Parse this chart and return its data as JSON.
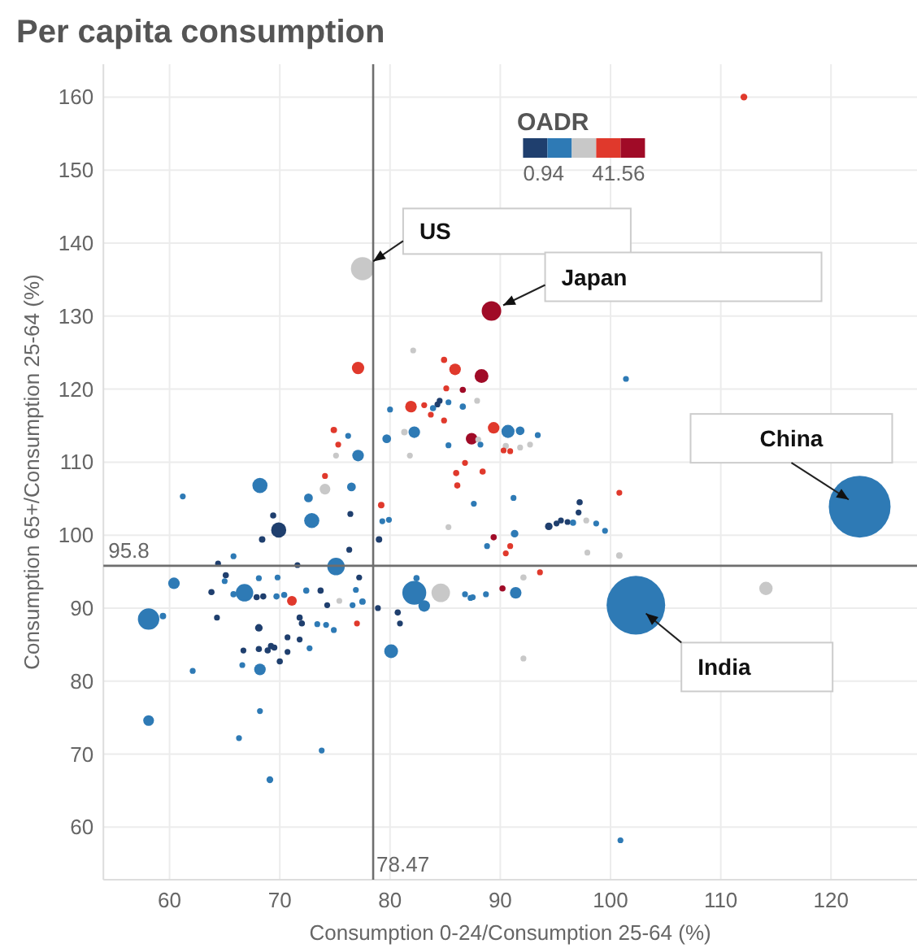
{
  "chart_data": {
    "type": "bubble",
    "title": "Per capita consumption",
    "xlabel": "Consumption 0-24/Consumption 25-64 (%)",
    "ylabel": "Consumption 65+/Consumption 25-64 (%)",
    "legend_title": "OADR",
    "xlim": [
      54,
      127.8
    ],
    "ylim": [
      52.8,
      164.5
    ],
    "xticks": [
      60,
      70,
      80,
      90,
      100,
      110,
      120
    ],
    "yticks": [
      60,
      70,
      80,
      90,
      100,
      110,
      120,
      130,
      140,
      150,
      160
    ],
    "grid": true,
    "ref_lines": [
      {
        "axis": "x",
        "value": 78.47,
        "label": "78.47",
        "color": "#6e6e6e"
      },
      {
        "axis": "y",
        "value": 95.8,
        "label": "95.8",
        "color": "#6e6e6e"
      }
    ],
    "annotations": [
      {
        "text": "US",
        "x": 77.5,
        "y": 136.5
      },
      {
        "text": "Japan",
        "x": 89.2,
        "y": 130.7
      },
      {
        "text": "China",
        "x": 122.6,
        "y": 103.9
      },
      {
        "text": "India",
        "x": 102.3,
        "y": 90.4
      },
      "0.94",
      "41.56"
    ],
    "x": [
      122.6,
      102.3,
      77.5,
      89.2,
      112.1,
      114.1,
      100.8,
      100.8,
      101.4,
      100.9,
      77.1,
      74.9,
      75.3,
      76.2,
      79.7,
      81.3,
      77.1,
      75.1,
      68.2,
      74.1,
      76.5,
      74.1,
      72.6,
      79.2,
      72.9,
      69.9,
      69.4,
      76.4,
      68.4,
      79.0,
      79.3,
      79.9,
      61.2,
      76.3,
      75.1,
      65.8,
      64.4,
      71.6,
      60.4,
      65.1,
      65.0,
      63.8,
      66.8,
      65.8,
      68.1,
      69.8,
      68.5,
      67.9,
      69.7,
      70.4,
      71.1,
      72.4,
      73.7,
      77.5,
      76.6,
      74.3,
      75.4,
      77.2,
      76.9,
      58.1,
      59.4,
      64.3,
      68.1,
      71.8,
      72.0,
      73.4,
      74.2,
      74.9,
      77.0,
      78.9,
      80.7,
      80.9,
      80.1,
      70.7,
      71.8,
      69.2,
      69.5,
      68.9,
      68.1,
      66.7,
      70.0,
      70.7,
      72.7,
      68.2,
      66.6,
      62.1,
      58.1,
      68.2,
      66.3,
      73.8,
      69.1,
      92.1,
      82.1,
      84.9,
      85.9,
      88.3,
      86.6,
      85.1,
      84.5,
      84.3,
      85.3,
      87.9,
      81.9,
      83.1,
      83.9,
      86.6,
      80.0,
      83.7,
      84.9,
      82.2,
      89.4,
      90.7,
      91.8,
      93.4,
      87.4,
      88.0,
      88.2,
      85.3,
      90.5,
      90.3,
      90.9,
      91.8,
      92.7,
      81.8,
      86.0,
      88.4,
      86.8,
      86.1,
      87.6,
      91.2,
      97.2,
      97.1,
      94.4,
      95.1,
      95.5,
      96.1,
      96.6,
      97.8,
      98.7,
      99.5,
      97.9,
      85.3,
      91.3,
      89.4,
      88.8,
      90.9,
      90.5,
      82.2,
      82.4,
      84.6,
      83.1,
      86.8,
      87.3,
      87.5,
      88.7,
      90.2,
      91.4,
      92.1,
      93.6
    ],
    "values": [
      103.9,
      90.4,
      136.5,
      130.7,
      160,
      92.7,
      97.2,
      105.8,
      121.4,
      58.2,
      122.9,
      114.4,
      112.4,
      113.6,
      113.2,
      114.1,
      110.9,
      110.9,
      106.8,
      106.3,
      106.6,
      108.1,
      105.1,
      104.1,
      102.0,
      100.7,
      102.7,
      102.9,
      99.4,
      99.4,
      101.9,
      102.1,
      105.3,
      98.0,
      95.7,
      97.1,
      96.1,
      95.9,
      93.4,
      94.5,
      93.7,
      92.2,
      92.1,
      91.9,
      94.1,
      94.2,
      91.6,
      91.5,
      91.6,
      91.8,
      91.0,
      92.4,
      92.4,
      90.9,
      90.4,
      90.4,
      91.0,
      94.2,
      92.5,
      88.5,
      88.9,
      88.7,
      87.3,
      88.7,
      87.9,
      87.8,
      87.7,
      87.0,
      87.9,
      90.0,
      89.4,
      87.9,
      84.1,
      86.0,
      85.7,
      84.8,
      84.6,
      84.2,
      84.4,
      84.2,
      82.7,
      84.0,
      84.5,
      81.6,
      82.2,
      81.4,
      74.6,
      75.9,
      72.2,
      70.5,
      66.5,
      83.1,
      125.3,
      124.0,
      122.7,
      121.8,
      119.9,
      120.1,
      118.4,
      117.9,
      118.2,
      118.4,
      117.6,
      117.8,
      117.4,
      117.6,
      117.2,
      116.5,
      115.7,
      114.1,
      114.7,
      114.2,
      114.3,
      113.7,
      113.2,
      113.1,
      112.4,
      112.3,
      112.2,
      111.6,
      111.5,
      112.0,
      112.4,
      110.9,
      108.5,
      108.7,
      109.9,
      106.8,
      104.3,
      105.1,
      104.5,
      103.1,
      101.2,
      101.6,
      102.0,
      101.8,
      101.7,
      102.0,
      101.6,
      100.6,
      97.6,
      101.1,
      100.2,
      99.7,
      98.5,
      98.5,
      97.5,
      92.1,
      94.1,
      92.1,
      90.3,
      91.9,
      91.4,
      91.5,
      91.9,
      92.7,
      92.1,
      94.2,
      94.9
    ],
    "sizes": [
      1,
      0.9,
      0.14,
      0.1,
      0.012,
      0.047,
      0.011,
      0.009,
      0.009,
      0.009,
      0.04,
      0.011,
      0.009,
      0.009,
      0.02,
      0.011,
      0.035,
      0.009,
      0.06,
      0.03,
      0.02,
      0.009,
      0.02,
      0.011,
      0.06,
      0.06,
      0.01,
      0.009,
      0.011,
      0.011,
      0.009,
      0.009,
      0.009,
      0.009,
      0.08,
      0.009,
      0.009,
      0.009,
      0.035,
      0.01,
      0.009,
      0.01,
      0.08,
      0.01,
      0.009,
      0.009,
      0.01,
      0.01,
      0.01,
      0.01,
      0.025,
      0.01,
      0.01,
      0.011,
      0.009,
      0.009,
      0.009,
      0.009,
      0.009,
      0.12,
      0.011,
      0.009,
      0.015,
      0.01,
      0.01,
      0.009,
      0.009,
      0.009,
      0.009,
      0.009,
      0.01,
      0.009,
      0.05,
      0.009,
      0.009,
      0.01,
      0.01,
      0.01,
      0.01,
      0.009,
      0.01,
      0.009,
      0.009,
      0.035,
      0.009,
      0.009,
      0.03,
      0.009,
      0.009,
      0.009,
      0.012,
      0.009,
      0.009,
      0.01,
      0.035,
      0.05,
      0.01,
      0.009,
      0.009,
      0.009,
      0.009,
      0.009,
      0.035,
      0.009,
      0.01,
      0.01,
      0.009,
      0.009,
      0.009,
      0.035,
      0.035,
      0.045,
      0.02,
      0.009,
      0.035,
      0.009,
      0.009,
      0.009,
      0.01,
      0.009,
      0.009,
      0.009,
      0.009,
      0.009,
      0.01,
      0.01,
      0.009,
      0.01,
      0.009,
      0.009,
      0.01,
      0.009,
      0.015,
      0.009,
      0.009,
      0.009,
      0.01,
      0.009,
      0.009,
      0.009,
      0.009,
      0.009,
      0.015,
      0.01,
      0.009,
      0.009,
      0.009,
      0.15,
      0.01,
      0.09,
      0.035,
      0.009,
      0.009,
      0.009,
      0.009,
      0.01,
      0.035,
      0.01,
      0.009
    ],
    "colors": [
      "#2e7ab5",
      "#2e7ab5",
      "#c8c8c8",
      "#a00b27",
      "#e0392c",
      "#c8c8c8",
      "#c8c8c8",
      "#e0392c",
      "#2e7ab5",
      "#2e7ab5",
      "#e0392c",
      "#e0392c",
      "#e0392c",
      "#2e7ab5",
      "#2e7ab5",
      "#c8c8c8",
      "#2e7ab5",
      "#c8c8c8",
      "#2e7ab5",
      "#c8c8c8",
      "#2e7ab5",
      "#e0392c",
      "#2e7ab5",
      "#e0392c",
      "#2e7ab5",
      "#1f3f6e",
      "#1f3f6e",
      "#1f3f6e",
      "#1f3f6e",
      "#1f3f6e",
      "#2e7ab5",
      "#2e7ab5",
      "#2e7ab5",
      "#1f3f6e",
      "#2e7ab5",
      "#2e7ab5",
      "#1f3f6e",
      "#1f3f6e",
      "#2e7ab5",
      "#1f3f6e",
      "#2e7ab5",
      "#1f3f6e",
      "#2e7ab5",
      "#2e7ab5",
      "#2e7ab5",
      "#2e7ab5",
      "#1f3f6e",
      "#1f3f6e",
      "#2e7ab5",
      "#2e7ab5",
      "#e0392c",
      "#2e7ab5",
      "#1f3f6e",
      "#2e7ab5",
      "#2e7ab5",
      "#1f3f6e",
      "#c8c8c8",
      "#1f3f6e",
      "#2e7ab5",
      "#2e7ab5",
      "#2e7ab5",
      "#1f3f6e",
      "#1f3f6e",
      "#1f3f6e",
      "#1f3f6e",
      "#2e7ab5",
      "#2e7ab5",
      "#2e7ab5",
      "#e0392c",
      "#1f3f6e",
      "#1f3f6e",
      "#1f3f6e",
      "#2e7ab5",
      "#1f3f6e",
      "#1f3f6e",
      "#1f3f6e",
      "#1f3f6e",
      "#1f3f6e",
      "#1f3f6e",
      "#1f3f6e",
      "#1f3f6e",
      "#1f3f6e",
      "#2e7ab5",
      "#2e7ab5",
      "#2e7ab5",
      "#2e7ab5",
      "#2e7ab5",
      "#2e7ab5",
      "#2e7ab5",
      "#2e7ab5",
      "#2e7ab5",
      "#c8c8c8",
      "#c8c8c8",
      "#e0392c",
      "#e0392c",
      "#a00b27",
      "#a00b27",
      "#e0392c",
      "#1f3f6e",
      "#1f3f6e",
      "#2e7ab5",
      "#c8c8c8",
      "#e0392c",
      "#e0392c",
      "#2e7ab5",
      "#2e7ab5",
      "#2e7ab5",
      "#e0392c",
      "#e0392c",
      "#2e7ab5",
      "#e0392c",
      "#2e7ab5",
      "#2e7ab5",
      "#2e7ab5",
      "#a00b27",
      "#c8c8c8",
      "#2e7ab5",
      "#2e7ab5",
      "#c8c8c8",
      "#e0392c",
      "#e0392c",
      "#c8c8c8",
      "#c8c8c8",
      "#c8c8c8",
      "#e0392c",
      "#e0392c",
      "#e0392c",
      "#e0392c",
      "#2e7ab5",
      "#2e7ab5",
      "#1f3f6e",
      "#1f3f6e",
      "#1f3f6e",
      "#1f3f6e",
      "#1f3f6e",
      "#1f3f6e",
      "#2e7ab5",
      "#c8c8c8",
      "#2e7ab5",
      "#2e7ab5",
      "#c8c8c8",
      "#c8c8c8",
      "#2e7ab5",
      "#a00b27",
      "#2e7ab5",
      "#e0392c",
      "#e0392c",
      "#2e7ab5",
      "#2e7ab5",
      "#c8c8c8",
      "#2e7ab5",
      "#2e7ab5",
      "#2e7ab5",
      "#2e7ab5",
      "#2e7ab5",
      "#a00b27",
      "#2e7ab5",
      "#c8c8c8",
      "#e0392c"
    ]
  }
}
